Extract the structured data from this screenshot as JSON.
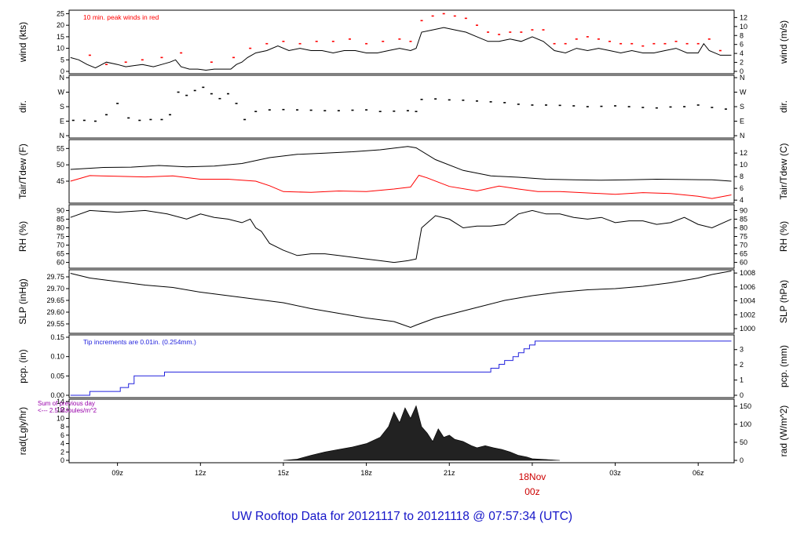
{
  "footer": {
    "title": "UW Rooftop Data for 20121117  to  20121118 @ 07:57:34  (UTC)"
  },
  "colors": {
    "axis": "#000000",
    "peak": "#ff0000",
    "dewpoint": "#ff0000",
    "precip": "#2222dd",
    "footer": "#1515c8",
    "radiation_note": "#9900aa",
    "date_label": "#cc0000"
  },
  "chart_data": {
    "type": "line",
    "time_axis": {
      "ticks": [
        "09z",
        "12z",
        "15z",
        "18z",
        "21z",
        "00z",
        "03z",
        "06z"
      ],
      "date_label": "18Nov",
      "date_sub": "00z",
      "range_hours": [
        7.25,
        31.3
      ]
    },
    "panels": [
      {
        "id": "wind",
        "left_label": "wind (kts)",
        "right_label": "wind (m/s)",
        "left_ticks": [
          0,
          5,
          10,
          15,
          20,
          25
        ],
        "left_range": [
          0,
          25.5
        ],
        "right_ticks": [
          0,
          2,
          4,
          6,
          8,
          10,
          12
        ],
        "right_factor": 0.5144,
        "annotation": "10 min. peak winds in red",
        "series": [
          {
            "style": "line",
            "x": [
              7.3,
              7.6,
              7.9,
              8.2,
              8.6,
              9.0,
              9.3,
              9.6,
              9.9,
              10.3,
              10.6,
              10.9,
              11.1,
              11.3,
              11.6,
              11.9,
              12.2,
              12.5,
              12.8,
              13.1,
              13.3,
              13.5,
              13.7,
              14.0,
              14.4,
              14.8,
              15.2,
              15.6,
              16.0,
              16.4,
              16.8,
              17.2,
              17.6,
              18.0,
              18.4,
              18.8,
              19.2,
              19.6,
              19.8,
              20.0,
              20.4,
              20.8,
              21.2,
              21.6,
              22.0,
              22.4,
              22.8,
              23.2,
              23.6,
              24.0,
              24.4,
              24.8,
              25.2,
              25.6,
              26.0,
              26.4,
              26.8,
              27.2,
              27.6,
              28.0,
              28.4,
              28.8,
              29.2,
              29.6,
              30.0,
              30.2,
              30.4,
              30.8,
              31.2
            ],
            "y": [
              6,
              5,
              3,
              1.5,
              4,
              3,
              2,
              2.5,
              3,
              2,
              3,
              4,
              5,
              2,
              1,
              1,
              0.5,
              1,
              1,
              1,
              3,
              4,
              6,
              8,
              9,
              11,
              9,
              10,
              9,
              9,
              8,
              9,
              9,
              8,
              8,
              9,
              10,
              9,
              10,
              17,
              18,
              19,
              18,
              17,
              15,
              13,
              13,
              14,
              13,
              15,
              13,
              9,
              8,
              10,
              9,
              10,
              9,
              8,
              9,
              8,
              8,
              9,
              10,
              8,
              8,
              12,
              9,
              7,
              7
            ]
          },
          {
            "style": "dots",
            "x": [
              8.0,
              8.6,
              9.3,
              9.9,
              10.6,
              11.3,
              12.4,
              13.2,
              13.8,
              14.4,
              15.0,
              15.6,
              16.2,
              16.8,
              17.4,
              18.0,
              18.6,
              19.2,
              19.6,
              20.0,
              20.4,
              20.8,
              21.2,
              21.6,
              22.0,
              22.4,
              22.8,
              23.2,
              23.6,
              24.0,
              24.4,
              24.8,
              25.2,
              25.6,
              26.0,
              26.4,
              26.8,
              27.2,
              27.6,
              28.0,
              28.4,
              28.8,
              29.2,
              29.6,
              30.0,
              30.4,
              30.8
            ],
            "y": [
              7,
              3,
              4,
              5,
              6,
              8,
              4,
              6,
              10,
              12,
              13,
              12,
              13,
              13,
              14,
              12,
              13,
              14,
              13,
              22,
              24,
              25,
              24,
              23,
              20,
              17,
              16,
              17,
              17,
              18,
              18,
              12,
              12,
              14,
              15,
              14,
              13,
              12,
              12,
              11,
              12,
              12,
              13,
              12,
              12,
              14,
              9
            ]
          }
        ]
      },
      {
        "id": "dir",
        "left_label": "dir.",
        "right_label": "dir.",
        "left_ticks": [
          "N",
          "E",
          "S",
          "W",
          "N"
        ],
        "left_values": [
          0,
          90,
          180,
          270,
          360
        ],
        "right_ticks": [
          "N",
          "E",
          "S",
          "W",
          "N"
        ],
        "range": [
          0,
          360
        ],
        "series": [
          {
            "style": "dots",
            "x": [
              7.4,
              7.8,
              8.2,
              8.6,
              9.0,
              9.4,
              9.8,
              10.2,
              10.6,
              10.9,
              11.2,
              11.5,
              11.8,
              12.1,
              12.4,
              12.7,
              13.0,
              13.3,
              13.6,
              14.0,
              14.5,
              15.0,
              15.5,
              16.0,
              16.5,
              17.0,
              17.5,
              18.0,
              18.5,
              19.0,
              19.5,
              19.8,
              20.0,
              20.5,
              21.0,
              21.5,
              22.0,
              22.5,
              23.0,
              23.5,
              24.0,
              24.5,
              25.0,
              25.5,
              26.0,
              26.5,
              27.0,
              27.5,
              28.0,
              28.5,
              29.0,
              29.5,
              30.0,
              30.5,
              31.0
            ],
            "y": [
              95,
              95,
              90,
              130,
              200,
              110,
              95,
              100,
              100,
              130,
              270,
              250,
              280,
              300,
              260,
              230,
              260,
              200,
              100,
              150,
              160,
              162,
              160,
              158,
              155,
              155,
              158,
              160,
              150,
              152,
              155,
              150,
              225,
              228,
              222,
              220,
              215,
              210,
              205,
              195,
              190,
              190,
              188,
              185,
              180,
              182,
              185,
              180,
              175,
              172,
              178,
              180,
              190,
              175,
              165
            ]
          }
        ]
      },
      {
        "id": "temp",
        "left_label": "Tair/Tdew (F)",
        "right_label": "Tair/Tdew (C)",
        "left_ticks": [
          45,
          50,
          55
        ],
        "left_range": [
          39,
          57
        ],
        "right_ticks": [
          4,
          6,
          8,
          10,
          12
        ],
        "series": [
          {
            "name": "Tair",
            "style": "line",
            "x": [
              7.3,
              8.5,
              9.5,
              10.5,
              11.5,
              12.5,
              13.5,
              14.5,
              15.5,
              16.5,
              17.5,
              18.5,
              19.5,
              19.8,
              20.5,
              21.5,
              22.5,
              23.5,
              24.5,
              25.5,
              26.5,
              27.5,
              28.5,
              29.5,
              30.5,
              31.2
            ],
            "y": [
              48.6,
              49.2,
              49.3,
              49.8,
              49.4,
              49.6,
              50.4,
              52.2,
              53.2,
              53.6,
              54.0,
              54.6,
              55.6,
              55.2,
              51.6,
              48.3,
              46.6,
              46.2,
              45.6,
              45.4,
              45.3,
              45.4,
              45.6,
              45.5,
              45.4,
              45.0
            ]
          },
          {
            "name": "Tdew",
            "style": "line",
            "x": [
              7.3,
              8.0,
              9.0,
              10.0,
              11.0,
              12.0,
              13.0,
              14.0,
              14.5,
              15.0,
              16.0,
              17.0,
              18.0,
              19.0,
              19.6,
              19.9,
              20.2,
              21.0,
              22.0,
              22.8,
              23.5,
              24.2,
              25.0,
              26.0,
              27.0,
              28.0,
              29.0,
              30.0,
              30.5,
              31.2
            ],
            "y": [
              45.0,
              46.7,
              46.5,
              46.3,
              46.6,
              45.6,
              45.6,
              45.0,
              43.6,
              41.8,
              41.6,
              42.0,
              41.8,
              42.6,
              43.2,
              46.8,
              46.0,
              43.4,
              42.0,
              43.5,
              42.6,
              41.8,
              41.8,
              41.4,
              41.0,
              41.5,
              41.2,
              40.4,
              39.7,
              40.8
            ]
          }
        ]
      },
      {
        "id": "rh",
        "left_label": "RH (%)",
        "right_label": "RH (%)",
        "left_ticks": [
          60,
          65,
          70,
          75,
          80,
          85,
          90
        ],
        "left_range": [
          58,
          92
        ],
        "right_ticks": [
          60,
          65,
          70,
          75,
          80,
          85,
          90
        ],
        "series": [
          {
            "style": "line",
            "x": [
              7.3,
              8.0,
              9.0,
              10.0,
              10.8,
              11.5,
              12.0,
              12.5,
              13.0,
              13.5,
              13.8,
              14.0,
              14.2,
              14.5,
              15.0,
              15.5,
              16.0,
              16.5,
              17.0,
              17.5,
              18.0,
              18.5,
              19.0,
              19.5,
              19.8,
              20.0,
              20.5,
              21.0,
              21.5,
              22.0,
              22.5,
              23.0,
              23.5,
              24.0,
              24.5,
              25.0,
              25.5,
              26.0,
              26.5,
              27.0,
              27.5,
              28.0,
              28.5,
              29.0,
              29.5,
              30.0,
              30.5,
              31.2
            ],
            "y": [
              86,
              90,
              89,
              90,
              88,
              85,
              88,
              86,
              85,
              83,
              85,
              80,
              78,
              71,
              67,
              64,
              65,
              65,
              64,
              63,
              62,
              61,
              60,
              61,
              62,
              80,
              87,
              85,
              80,
              81,
              81,
              82,
              88,
              90,
              88,
              88,
              86,
              85,
              86,
              83,
              84,
              84,
              82,
              83,
              86,
              82,
              80,
              85
            ]
          }
        ]
      },
      {
        "id": "slp",
        "left_label": "SLP (inHg)",
        "right_label": "SLP (hPa)",
        "left_ticks": [
          "29.55",
          "29.60",
          "29.65",
          "29.70",
          "29.75"
        ],
        "left_values": [
          29.55,
          29.6,
          29.65,
          29.7,
          29.75
        ],
        "left_range": [
          29.52,
          29.77
        ],
        "right_ticks": [
          1000,
          1002,
          1004,
          1006,
          1008
        ],
        "series": [
          {
            "style": "line",
            "x": [
              7.3,
              8.0,
              9.0,
              10.0,
              11.0,
              12.0,
              13.0,
              14.0,
              15.0,
              16.0,
              17.0,
              18.0,
              19.0,
              19.6,
              19.8,
              20.5,
              21.0,
              22.0,
              23.0,
              24.0,
              25.0,
              26.0,
              27.0,
              28.0,
              29.0,
              30.0,
              30.5,
              31.2
            ],
            "y": [
              29.765,
              29.745,
              29.73,
              29.715,
              29.705,
              29.685,
              29.67,
              29.655,
              29.64,
              29.615,
              29.595,
              29.575,
              29.56,
              29.535,
              29.545,
              29.575,
              29.59,
              29.62,
              29.65,
              29.67,
              29.685,
              29.695,
              29.7,
              29.71,
              29.725,
              29.745,
              29.76,
              29.775
            ]
          }
        ]
      },
      {
        "id": "pcp",
        "left_label": "pcp. (in)",
        "right_label": "pcp. (mm)",
        "left_ticks": [
          "0.00",
          "0.05",
          "0.10",
          "0.15"
        ],
        "left_values": [
          0,
          0.05,
          0.1,
          0.15
        ],
        "left_range": [
          0,
          0.15
        ],
        "right_ticks": [
          0,
          1,
          2,
          3
        ],
        "annotation": "Tip increments are 0.01in. (0.254mm.)",
        "series": [
          {
            "style": "step",
            "x": [
              7.3,
              8.0,
              9.1,
              9.4,
              9.6,
              10.7,
              22.5,
              22.8,
              23.0,
              23.3,
              23.5,
              23.7,
              23.9,
              24.1,
              31.2
            ],
            "y": [
              0.0,
              0.01,
              0.02,
              0.03,
              0.05,
              0.06,
              0.07,
              0.08,
              0.09,
              0.1,
              0.11,
              0.12,
              0.13,
              0.14,
              0.14
            ]
          }
        ]
      },
      {
        "id": "rad",
        "left_label": "rad(Lgly/hr)",
        "right_label": "rad (W/m^2)",
        "left_ticks": [
          0,
          2,
          4,
          6,
          8,
          10,
          12,
          14
        ],
        "left_range": [
          0,
          14
        ],
        "right_ticks": [
          0,
          50,
          100,
          150
        ],
        "annotation_lines": [
          "Sum of previous day",
          "<---  2.5 MJoules/m^2"
        ],
        "series": [
          {
            "style": "area",
            "x": [
              15.0,
              15.5,
              16.0,
              16.5,
              17.0,
              17.5,
              18.0,
              18.5,
              18.8,
              19.0,
              19.2,
              19.4,
              19.6,
              19.8,
              20.0,
              20.2,
              20.4,
              20.6,
              20.8,
              21.0,
              21.2,
              21.5,
              21.8,
              22.0,
              22.3,
              22.6,
              22.9,
              23.2,
              23.5,
              23.8,
              24.0,
              24.5,
              25.0
            ],
            "y": [
              0,
              0.3,
              1.2,
              2.0,
              2.6,
              3.2,
              4.0,
              5.5,
              8.0,
              11.5,
              9.0,
              12.5,
              10.0,
              13.0,
              8.0,
              6.5,
              4.5,
              7.5,
              5.5,
              6.0,
              5.0,
              4.5,
              3.5,
              3.0,
              3.5,
              3.0,
              2.6,
              2.0,
              1.2,
              0.8,
              0.4,
              0.2,
              0
            ]
          }
        ]
      }
    ]
  }
}
